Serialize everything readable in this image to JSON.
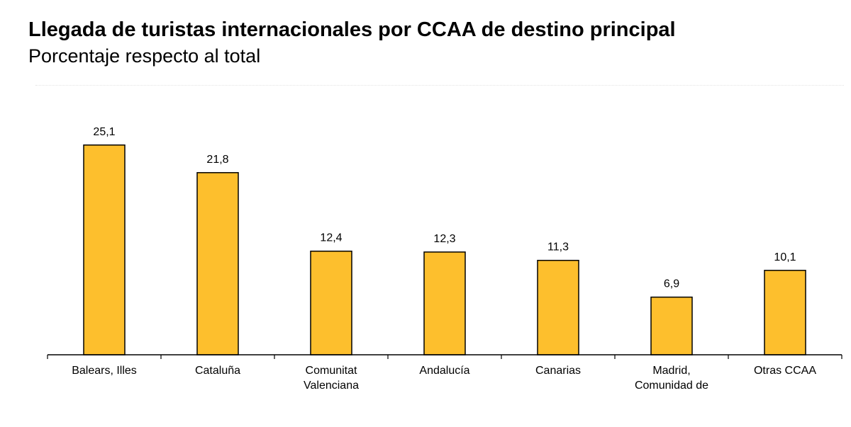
{
  "header": {
    "title": "Llegada de turistas internacionales por CCAA de destino principal",
    "subtitle": "Porcentaje respecto al total"
  },
  "colors": {
    "bar_fill": "#FDBF2D",
    "bar_stroke": "#000000",
    "text": "#000000"
  },
  "chart_data": {
    "type": "bar",
    "title": "Llegada de turistas internacionales por CCAA de destino principal",
    "subtitle": "Porcentaje respecto al total",
    "categories": [
      [
        "Balears, Illes"
      ],
      [
        "Cataluña"
      ],
      [
        "Comunitat",
        "Valenciana"
      ],
      [
        "Andalucía"
      ],
      [
        "Canarias"
      ],
      [
        "Madrid,",
        "Comunidad de"
      ],
      [
        "Otras CCAA"
      ]
    ],
    "values": [
      25.1,
      21.8,
      12.4,
      12.3,
      11.3,
      6.9,
      10.1
    ],
    "value_labels": [
      "25,1",
      "21,8",
      "12,4",
      "12,3",
      "11,3",
      "6,9",
      "10,1"
    ],
    "xlabel": "",
    "ylabel": "",
    "ylim": [
      0,
      30
    ],
    "grid": false,
    "legend": "none"
  }
}
